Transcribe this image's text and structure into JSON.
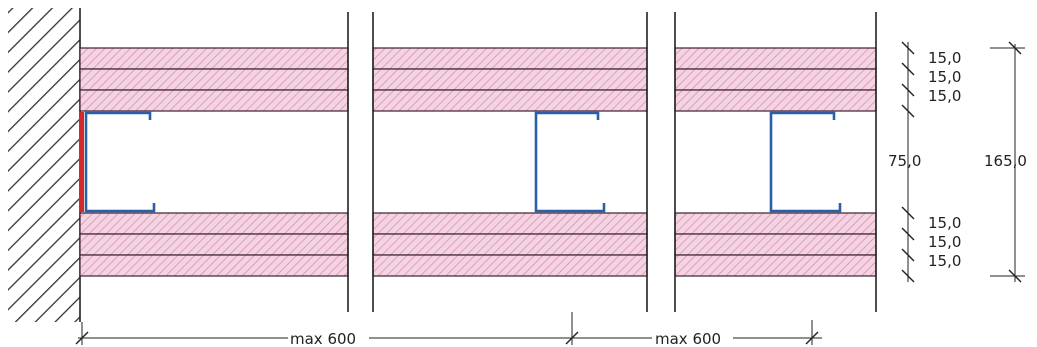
{
  "colors": {
    "background": "#ffffff",
    "board_fill": "#f4d3e2",
    "board_hatch": "#d78aa9",
    "board_edge": "#3a2230",
    "stud": "#2a60a8",
    "wall_joint": "#d22a2a",
    "wall_hatch": "#333333",
    "dimension": "#222222"
  },
  "board_layers": {
    "top": [
      "15,0",
      "15,0",
      "15,0"
    ],
    "bottom": [
      "15,0",
      "15,0",
      "15,0"
    ]
  },
  "dimensions": {
    "vertical": {
      "top_layers": [
        "15,0",
        "15,0",
        "15,0"
      ],
      "cavity": "75,0",
      "bottom_layers": [
        "15,0",
        "15,0",
        "15,0"
      ],
      "total": "165,0"
    },
    "horizontal": {
      "span_1": "max 600",
      "span_2": "max 600"
    }
  },
  "icons": {
    "wall": "hatched-wall-icon",
    "stud": "c-stud-profile-icon",
    "break": "break-line-icon"
  }
}
